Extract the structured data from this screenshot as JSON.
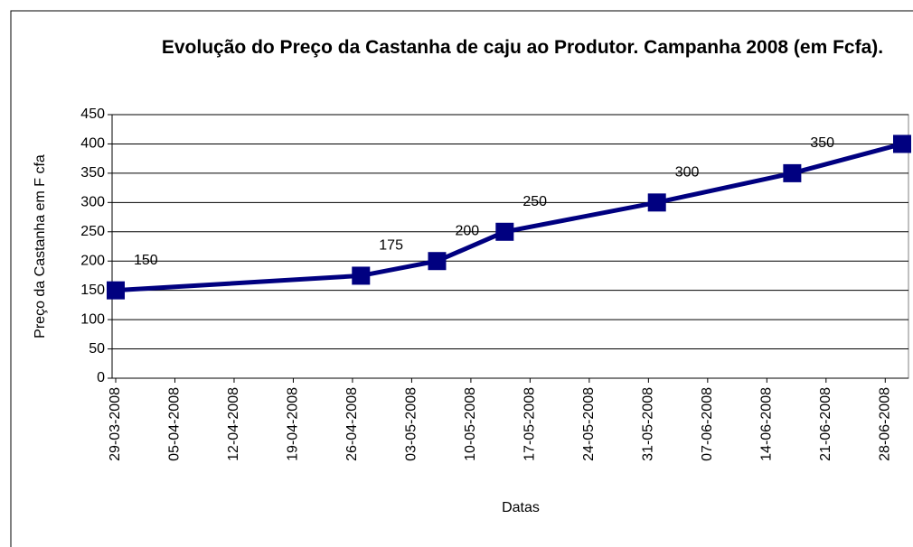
{
  "chart_data": {
    "type": "line",
    "title": "Evolução do Preço da Castanha de caju ao Produtor. Campanha 2008 (em Fcfa).",
    "xlabel": "Datas",
    "ylabel": "Preço da Castanha em F cfa",
    "x": [
      "29-03-2008",
      "27-04-2008",
      "06-05-2008",
      "14-05-2008",
      "01-06-2008",
      "17-06-2008",
      "30-06-2008"
    ],
    "series": [
      {
        "color": "#000080",
        "values": [
          150,
          175,
          200,
          250,
          300,
          350,
          400
        ]
      }
    ],
    "xlim": [
      "29-03-2008",
      "30-06-2008"
    ],
    "xticks": [
      "29-03-2008",
      "05-04-2008",
      "12-04-2008",
      "19-04-2008",
      "26-04-2008",
      "03-05-2008",
      "10-05-2008",
      "17-05-2008",
      "24-05-2008",
      "31-05-2008",
      "07-06-2008",
      "14-06-2008",
      "21-06-2008",
      "28-06-2008"
    ],
    "ylim": [
      0,
      450
    ],
    "yticks": [
      0,
      50,
      100,
      150,
      200,
      250,
      300,
      350,
      400,
      450
    ],
    "grid": true
  }
}
